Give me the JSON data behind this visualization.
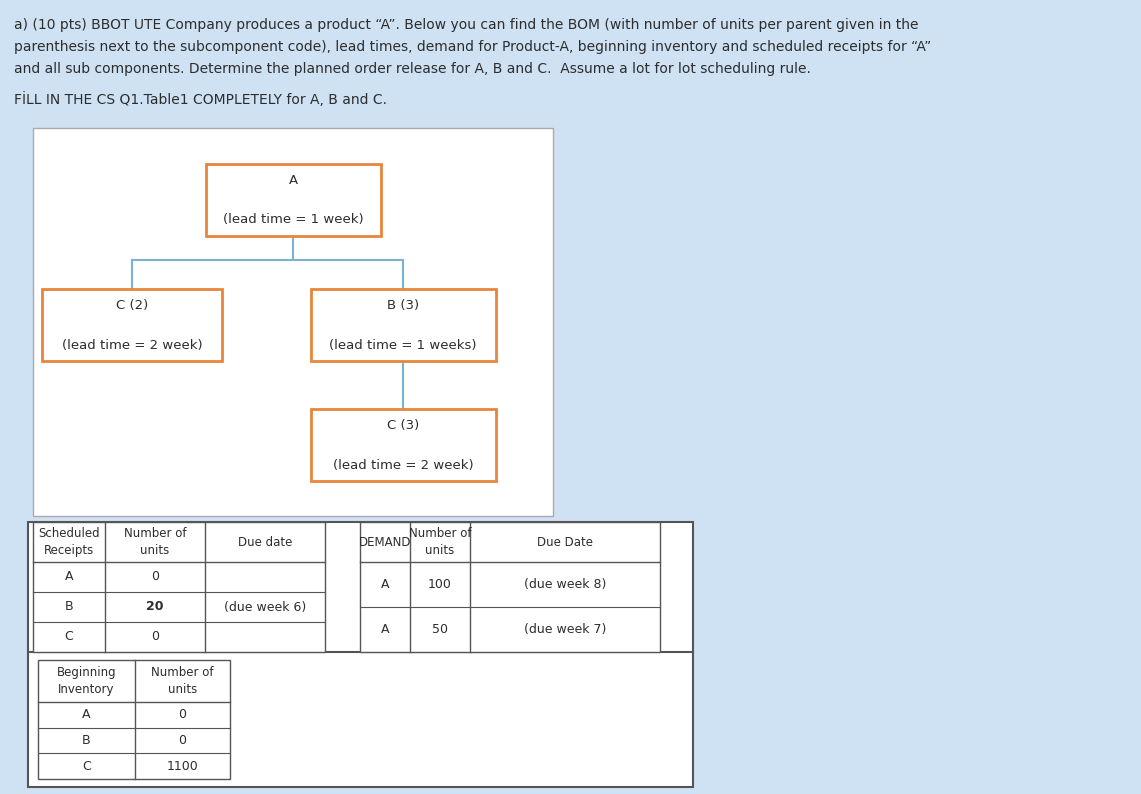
{
  "background_color": "#cfe2f3",
  "orange_color": "#e8853a",
  "blue_line_color": "#7ab3d0",
  "text_color": "#2d2d2d",
  "title_line1": "a) (10 pts) BBOT UTE Company produces a product “A”. Below you can find the BOM (with number of units per parent given in the",
  "title_line2": "parenthesis next to the subcomponent code), lead times, demand for Product-A, beginning inventory and scheduled receipts for “A”",
  "title_line3": "and all sub components. Determine the planned order release for A, B and C.  Assume a lot for lot scheduling rule.",
  "subtitle_text": "FİLL IN THE CS Q1.Table1 COMPLETELY for A, B and C.",
  "node_A_label": "A\n\n(lead time = 1 week)",
  "node_B_label": "B (3)\n\n(lead time = 1 weeks)",
  "node_C2_label": "C (2)\n\n(lead time = 2 week)",
  "node_C3_label": "C (3)\n\n(lead time = 2 week)",
  "sr_rows": [
    [
      "A",
      "0",
      ""
    ],
    [
      "B",
      "20",
      "(due week 6)"
    ],
    [
      "C",
      "0",
      ""
    ]
  ],
  "demand_rows": [
    [
      "A",
      "100",
      "(due week 8)"
    ],
    [
      "A",
      "50",
      "(due week 7)"
    ]
  ],
  "bi_rows": [
    [
      "A",
      "0"
    ],
    [
      "B",
      "0"
    ],
    [
      "C",
      "1100"
    ]
  ]
}
